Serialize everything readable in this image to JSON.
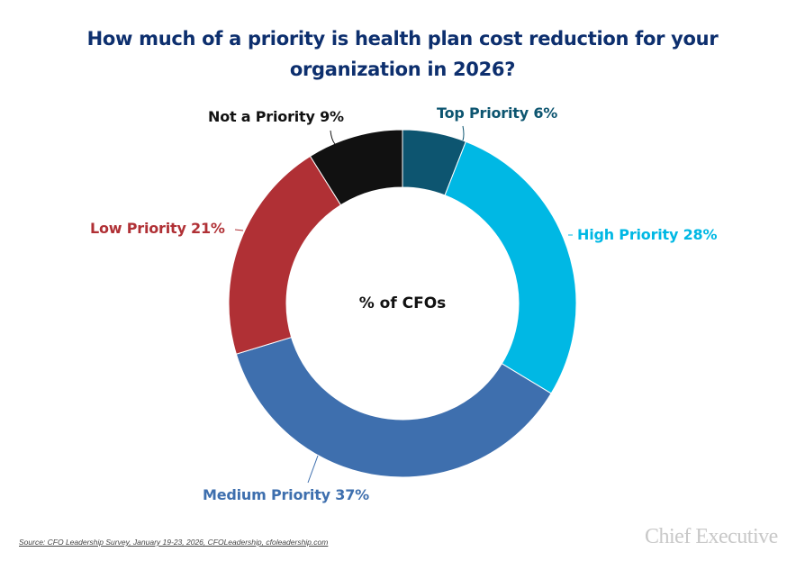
{
  "chart_data": {
    "type": "pie",
    "variant": "donut",
    "title": "How much of a priority is health plan cost reduction for your organization in 2026?",
    "title_lines": [
      "How much of a priority is health plan cost reduction for your",
      "organization in 2026?"
    ],
    "center_label": "% of CFOs",
    "slices": [
      {
        "name": "Top Priority",
        "value": 6,
        "label": "Top Priority 6%",
        "color": "#0d5570"
      },
      {
        "name": "High Priority",
        "value": 28,
        "label": "High Priority 28%",
        "color": "#00b8e4"
      },
      {
        "name": "Medium Priority",
        "value": 37,
        "label": "Medium Priority 37%",
        "color": "#3e6fae"
      },
      {
        "name": "Low Priority",
        "value": 21,
        "label": "Low Priority 21%",
        "color": "#b03035"
      },
      {
        "name": "Not a Priority",
        "value": 9,
        "label": "Not a Priority 9%",
        "color": "#111111"
      }
    ]
  },
  "footer": {
    "source": "Source: CFO Leadership Survey, January 19-23, 2026, CFOLeadership, cfoleadership.com",
    "logo": "Chief Executive"
  }
}
